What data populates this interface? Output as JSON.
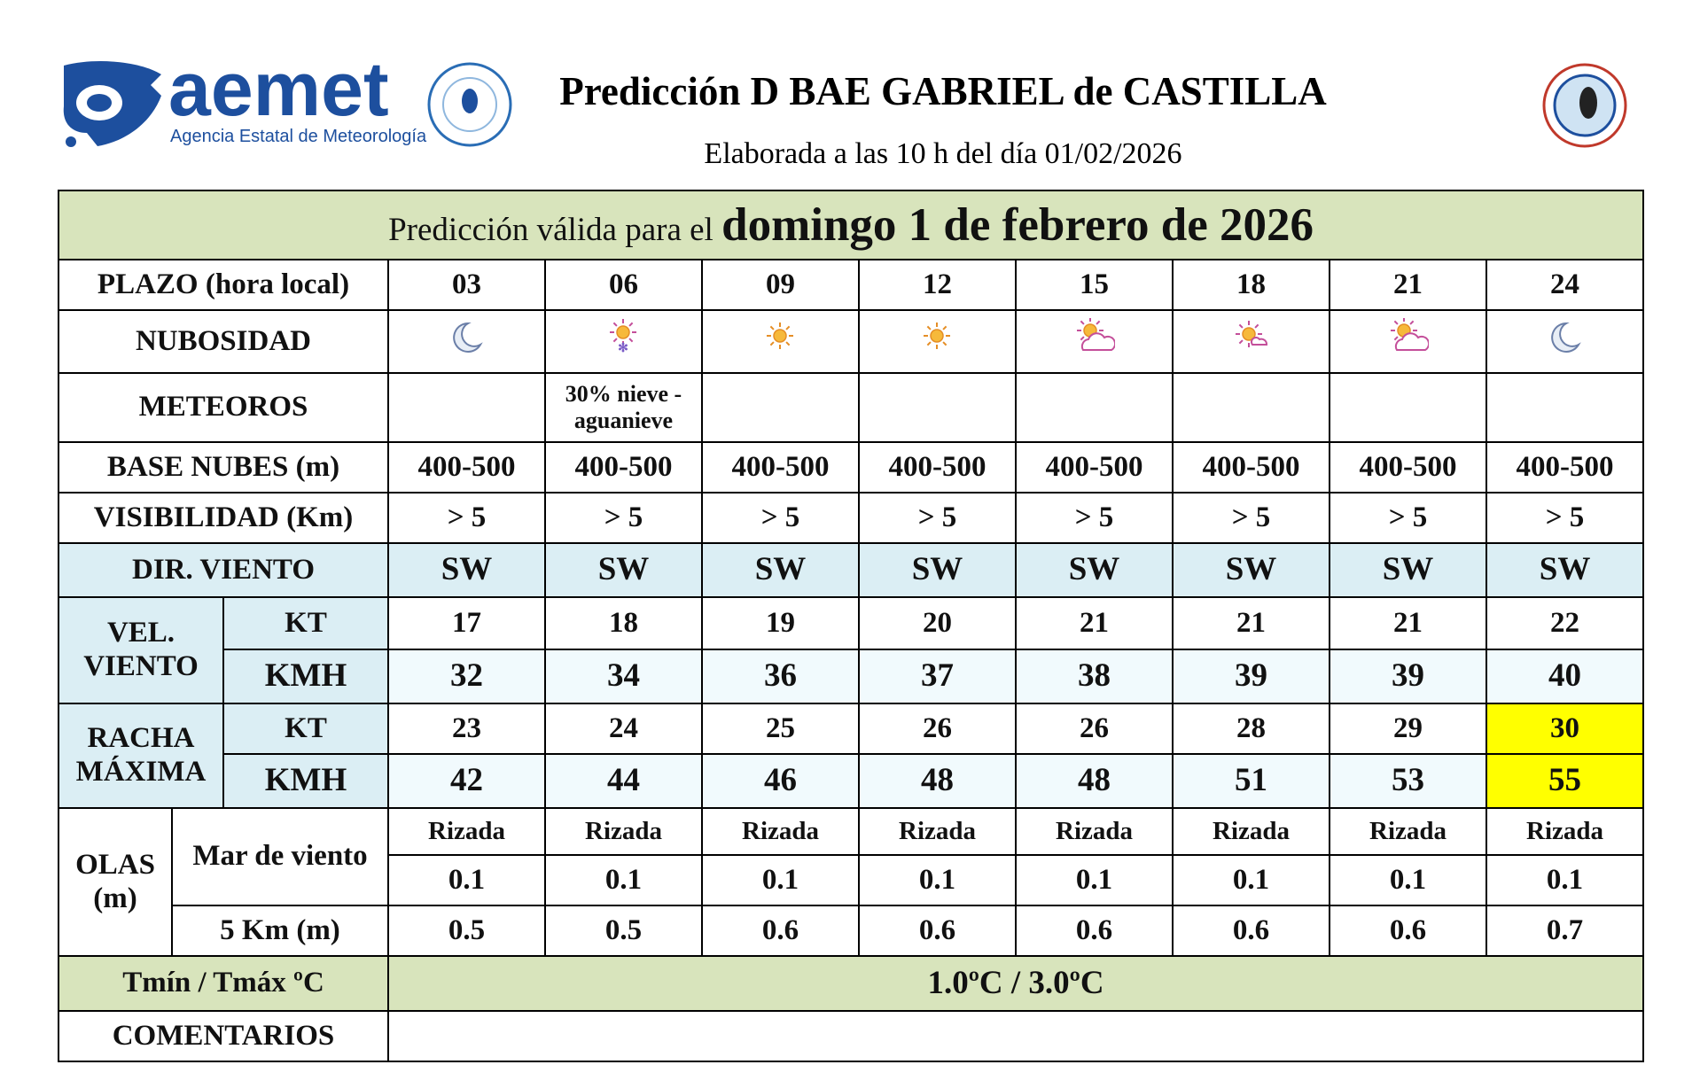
{
  "header": {
    "brand": "aemet",
    "agency": "Agencia Estatal de Meteorología",
    "title": "Predicción D BAE GABRIEL de CASTILLA",
    "subtitle": "Elaborada a las 10 h del día 01/02/2026"
  },
  "forecast": {
    "caption_prefix": "Predicción válida para el",
    "caption_date": "domingo 1 de febrero de 2026",
    "plazo_label": "PLAZO (hora local)",
    "hours": [
      "03",
      "06",
      "09",
      "12",
      "15",
      "18",
      "21",
      "24"
    ],
    "nubosidad_label": "NUBOSIDAD",
    "meteoros_label": "METEOROS",
    "meteoros": [
      null,
      "30% nieve - aguanieve",
      null,
      null,
      null,
      null,
      null,
      null
    ],
    "base_label": "BASE NUBES (m)",
    "base": [
      "400-500",
      "400-500",
      "400-500",
      "400-500",
      "400-500",
      "400-500",
      "400-500",
      "400-500"
    ],
    "vis_label": "VISIBILIDAD (Km)",
    "vis": [
      "> 5",
      "> 5",
      "> 5",
      "> 5",
      "> 5",
      "> 5",
      "> 5",
      "> 5"
    ],
    "dir_label": "DIR. VIENTO",
    "dir": [
      "SW",
      "SW",
      "SW",
      "SW",
      "SW",
      "SW",
      "SW",
      "SW"
    ],
    "vel_label": "VEL. VIENTO",
    "vel_kt_label": "KT",
    "vel_kmh_label": "KMH",
    "vel_kt": [
      17,
      18,
      19,
      20,
      21,
      21,
      21,
      22
    ],
    "vel_kmh": [
      32,
      34,
      36,
      37,
      38,
      39,
      39,
      40
    ],
    "racha_label": "RACHA MÁXIMA",
    "racha_kt_label": "KT",
    "racha_kmh_label": "KMH",
    "racha_kt": [
      23,
      24,
      25,
      26,
      26,
      28,
      29,
      30
    ],
    "racha_kmh": [
      42,
      44,
      46,
      48,
      48,
      51,
      53,
      55
    ],
    "racha_alert": [
      false,
      false,
      false,
      false,
      false,
      false,
      false,
      true
    ],
    "alert_color": "#ffff00",
    "olas_label": "OLAS (m)",
    "mar_label": "Mar de viento",
    "mar_estado": [
      "Rizada",
      "Rizada",
      "Rizada",
      "Rizada",
      "Rizada",
      "Rizada",
      "Rizada",
      "Rizada"
    ],
    "mar_altura": [
      0.1,
      0.1,
      0.1,
      0.1,
      0.1,
      0.1,
      0.1,
      0.1
    ],
    "mar5_label": "5 Km (m)",
    "mar5": [
      0.5,
      0.5,
      0.6,
      0.6,
      0.6,
      0.6,
      0.6,
      0.7
    ],
    "temp_label": "Tmín / Tmáx ºC",
    "temp": "1.0ºC / 3.0ºC",
    "comentarios_label": "COMENTARIOS"
  }
}
